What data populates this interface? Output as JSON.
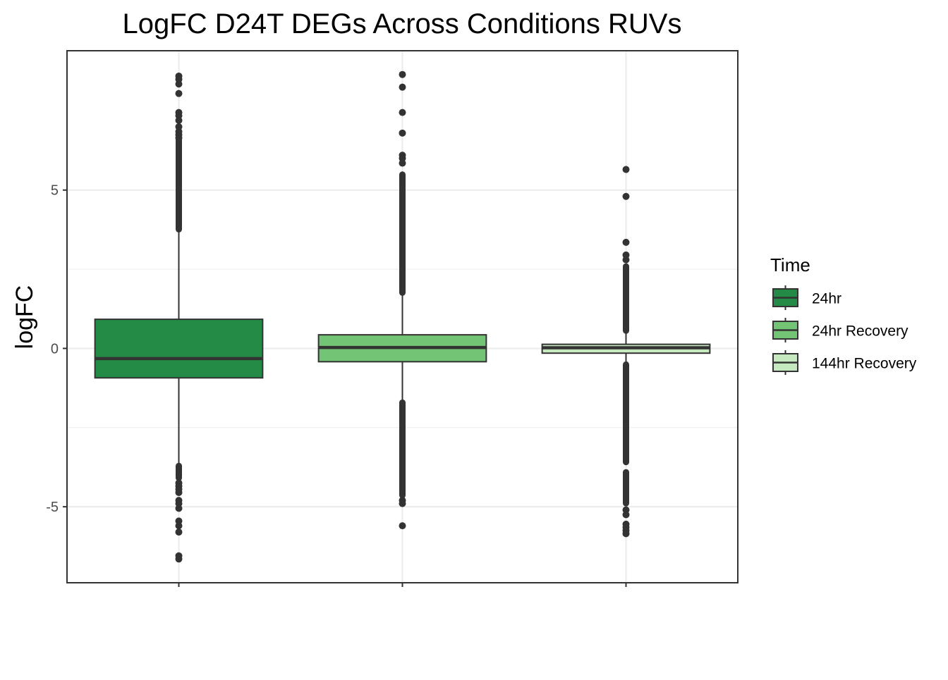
{
  "chart_data": {
    "type": "boxplot",
    "title": "LogFC D24T DEGs Across Conditions RUVs",
    "xlabel": "",
    "ylabel": "logFC",
    "ylim": [
      -7.4,
      9.4
    ],
    "yticks": [
      -5,
      0,
      5
    ],
    "ytick_labels": [
      "-5",
      "0",
      "5"
    ],
    "grid": true,
    "legend": {
      "title": "Time",
      "position": "right",
      "entries": [
        "24hr",
        "24hr Recovery",
        "144hr Recovery"
      ]
    },
    "colors": {
      "24hr": "#238b45",
      "24hr Recovery": "#74c476",
      "144hr Recovery": "#c7e9c0",
      "outline": "#333333",
      "grid": "#ebebeb",
      "panel_border": "#333333"
    },
    "series": [
      {
        "name": "24hr",
        "q1": -0.93,
        "median": -0.32,
        "q3": 0.92,
        "whisker_low": -3.7,
        "whisker_high": 3.7,
        "outliers_dense": [
          [
            3.75,
            6.6
          ],
          [
            -4.1,
            -3.7
          ]
        ],
        "outliers": [
          8.6,
          8.5,
          8.35,
          8.05,
          7.45,
          7.35,
          7.2,
          7.0,
          6.85,
          6.75,
          6.65,
          -4.25,
          -4.35,
          -4.45,
          -4.55,
          -4.8,
          -4.9,
          -5.05,
          -5.45,
          -5.6,
          -5.8,
          -6.55,
          -6.65
        ]
      },
      {
        "name": "24hr Recovery",
        "q1": -0.42,
        "median": 0.03,
        "q3": 0.43,
        "whisker_low": -1.7,
        "whisker_high": 1.7,
        "outliers_dense": [
          [
            1.75,
            5.5
          ],
          [
            -4.65,
            -1.7
          ]
        ],
        "outliers": [
          8.65,
          8.25,
          7.45,
          6.8,
          6.1,
          6.0,
          5.85,
          -4.8,
          -4.9,
          -5.6
        ]
      },
      {
        "name": "144hr Recovery",
        "q1": -0.15,
        "median": 0.02,
        "q3": 0.13,
        "whisker_low": -0.5,
        "whisker_high": 0.5,
        "outliers_dense": [
          [
            0.55,
            2.6
          ],
          [
            -3.6,
            -0.5
          ],
          [
            -4.9,
            -3.9
          ]
        ],
        "outliers": [
          5.65,
          4.8,
          3.35,
          2.95,
          2.8,
          -5.1,
          -5.25,
          -5.55,
          -5.65,
          -5.75,
          -5.85
        ]
      }
    ]
  }
}
